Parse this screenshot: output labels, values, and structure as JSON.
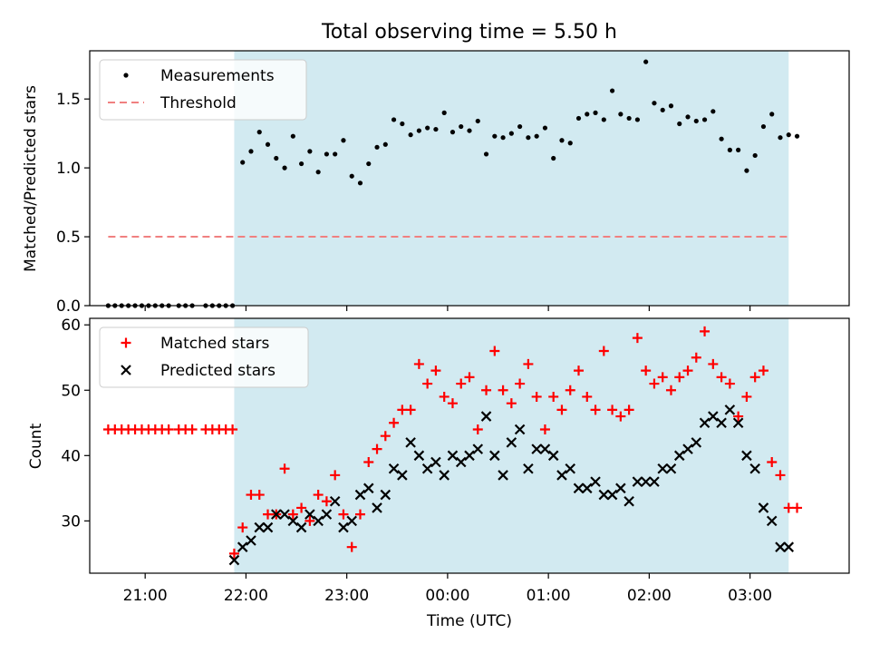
{
  "figure": {
    "title": "Total observing time = 5.50 h"
  },
  "chart_data": [
    {
      "type": "scatter",
      "ylabel": "Matched/Predicted stars",
      "xlabel": "",
      "ylim": [
        0.0,
        1.85
      ],
      "xlim": [
        "20:27",
        "03:59"
      ],
      "yticks": [
        "0.0",
        "0.5",
        "1.0",
        "1.5"
      ],
      "yticks_values": [
        0.0,
        0.5,
        1.0,
        1.5
      ],
      "shaded_span": {
        "start": "21:53",
        "end": "03:23",
        "color": "#add8e6"
      },
      "legend": {
        "placement": "top-left",
        "entries": [
          "Measurements",
          "Threshold"
        ]
      },
      "series": [
        {
          "name": "Measurements",
          "marker": "dot",
          "color": "#000000",
          "x": [
            "20:38",
            "20:42",
            "20:46",
            "20:50",
            "20:54",
            "20:58",
            "21:02",
            "21:06",
            "21:10",
            "21:14",
            "21:20",
            "21:24",
            "21:28",
            "21:36",
            "21:40",
            "21:44",
            "21:48",
            "21:52",
            "21:58",
            "22:03",
            "22:08",
            "22:13",
            "22:18",
            "22:23",
            "22:28",
            "22:33",
            "22:38",
            "22:43",
            "22:48",
            "22:53",
            "22:58",
            "23:03",
            "23:08",
            "23:13",
            "23:18",
            "23:23",
            "23:28",
            "23:33",
            "23:38",
            "23:43",
            "23:48",
            "23:53",
            "23:58",
            "00:03",
            "00:08",
            "00:13",
            "00:18",
            "00:23",
            "00:28",
            "00:33",
            "00:38",
            "00:43",
            "00:48",
            "00:53",
            "00:58",
            "01:03",
            "01:08",
            "01:13",
            "01:18",
            "01:23",
            "01:28",
            "01:33",
            "01:38",
            "01:43",
            "01:48",
            "01:53",
            "01:58",
            "02:03",
            "02:08",
            "02:13",
            "02:18",
            "02:23",
            "02:28",
            "02:33",
            "02:38",
            "02:43",
            "02:48",
            "02:53",
            "02:58",
            "03:03",
            "03:08",
            "03:13",
            "03:18",
            "03:23",
            "03:28"
          ],
          "y": [
            0,
            0,
            0,
            0,
            0,
            0,
            0,
            0,
            0,
            0,
            0,
            0,
            0,
            0,
            0,
            0,
            0,
            0,
            1.04,
            1.12,
            1.26,
            1.17,
            1.07,
            1.0,
            1.23,
            1.03,
            1.12,
            0.97,
            1.1,
            1.1,
            1.2,
            0.94,
            0.89,
            1.03,
            1.15,
            1.17,
            1.35,
            1.32,
            1.24,
            1.27,
            1.29,
            1.28,
            1.4,
            1.26,
            1.3,
            1.27,
            1.34,
            1.1,
            1.23,
            1.22,
            1.25,
            1.3,
            1.22,
            1.23,
            1.29,
            1.07,
            1.2,
            1.18,
            1.36,
            1.39,
            1.4,
            1.35,
            1.56,
            1.39,
            1.36,
            1.35,
            1.77,
            1.47,
            1.42,
            1.45,
            1.32,
            1.37,
            1.34,
            1.35,
            1.41,
            1.21,
            1.13,
            1.13,
            0.98,
            1.09,
            1.3,
            1.39,
            1.22,
            1.24,
            1.23
          ]
        },
        {
          "name": "Threshold",
          "style": "dashed",
          "color": "#f08080",
          "x": [
            "20:38",
            "03:23"
          ],
          "y": [
            0.5,
            0.5
          ]
        }
      ]
    },
    {
      "type": "scatter",
      "ylabel": "Count",
      "xlabel": "Time (UTC)",
      "ylim": [
        22,
        61
      ],
      "xlim": [
        "20:27",
        "03:59"
      ],
      "yticks": [
        "30",
        "40",
        "50",
        "60"
      ],
      "yticks_values": [
        30,
        40,
        50,
        60
      ],
      "xticks": [
        "21:00",
        "22:00",
        "23:00",
        "00:00",
        "01:00",
        "02:00",
        "03:00"
      ],
      "shaded_span": {
        "start": "21:53",
        "end": "03:23",
        "color": "#add8e6"
      },
      "legend": {
        "placement": "top-left",
        "entries": [
          "Matched stars",
          "Predicted stars"
        ]
      },
      "series": [
        {
          "name": "Matched stars",
          "marker": "plus",
          "color": "#ff0000",
          "x": [
            "20:38",
            "20:42",
            "20:46",
            "20:50",
            "20:54",
            "20:58",
            "21:02",
            "21:06",
            "21:10",
            "21:14",
            "21:20",
            "21:24",
            "21:28",
            "21:36",
            "21:40",
            "21:44",
            "21:48",
            "21:52",
            "21:53",
            "21:58",
            "22:03",
            "22:08",
            "22:13",
            "22:18",
            "22:23",
            "22:28",
            "22:33",
            "22:38",
            "22:43",
            "22:48",
            "22:53",
            "22:58",
            "23:03",
            "23:08",
            "23:13",
            "23:18",
            "23:23",
            "23:28",
            "23:33",
            "23:38",
            "23:43",
            "23:48",
            "23:53",
            "23:58",
            "00:03",
            "00:08",
            "00:13",
            "00:18",
            "00:23",
            "00:28",
            "00:33",
            "00:38",
            "00:43",
            "00:48",
            "00:53",
            "00:58",
            "01:03",
            "01:08",
            "01:13",
            "01:18",
            "01:23",
            "01:28",
            "01:33",
            "01:38",
            "01:43",
            "01:48",
            "01:53",
            "01:58",
            "02:03",
            "02:08",
            "02:13",
            "02:18",
            "02:23",
            "02:28",
            "02:33",
            "02:38",
            "02:43",
            "02:48",
            "02:53",
            "02:58",
            "03:03",
            "03:08",
            "03:13",
            "03:18",
            "03:23",
            "03:28"
          ],
          "y": [
            44,
            44,
            44,
            44,
            44,
            44,
            44,
            44,
            44,
            44,
            44,
            44,
            44,
            44,
            44,
            44,
            44,
            44,
            25,
            29,
            34,
            34,
            31,
            31,
            38,
            31,
            32,
            30,
            34,
            33,
            37,
            31,
            26,
            31,
            39,
            41,
            43,
            45,
            47,
            47,
            54,
            51,
            53,
            49,
            48,
            51,
            52,
            44,
            50,
            56,
            50,
            48,
            51,
            54,
            49,
            44,
            49,
            47,
            50,
            53,
            49,
            47,
            56,
            47,
            46,
            47,
            58,
            53,
            51,
            52,
            50,
            52,
            53,
            55,
            59,
            54,
            52,
            51,
            46,
            49,
            52,
            53,
            39,
            37,
            32,
            32
          ]
        },
        {
          "name": "Predicted stars",
          "marker": "x",
          "color": "#000000",
          "x": [
            "21:53",
            "21:58",
            "22:03",
            "22:08",
            "22:13",
            "22:18",
            "22:23",
            "22:28",
            "22:33",
            "22:38",
            "22:43",
            "22:48",
            "22:53",
            "22:58",
            "23:03",
            "23:08",
            "23:13",
            "23:18",
            "23:23",
            "23:28",
            "23:33",
            "23:38",
            "23:43",
            "23:48",
            "23:53",
            "23:58",
            "00:03",
            "00:08",
            "00:13",
            "00:18",
            "00:23",
            "00:28",
            "00:33",
            "00:38",
            "00:43",
            "00:48",
            "00:53",
            "00:58",
            "01:03",
            "01:08",
            "01:13",
            "01:18",
            "01:23",
            "01:28",
            "01:33",
            "01:38",
            "01:43",
            "01:48",
            "01:53",
            "01:58",
            "02:03",
            "02:08",
            "02:13",
            "02:18",
            "02:23",
            "02:28",
            "02:33",
            "02:38",
            "02:43",
            "02:48",
            "02:53",
            "02:58",
            "03:03",
            "03:08",
            "03:13",
            "03:18",
            "03:23"
          ],
          "y": [
            24,
            26,
            27,
            29,
            29,
            31,
            31,
            30,
            29,
            31,
            30,
            31,
            33,
            29,
            30,
            34,
            35,
            32,
            34,
            38,
            37,
            42,
            40,
            38,
            39,
            37,
            40,
            39,
            40,
            41,
            46,
            40,
            37,
            42,
            44,
            38,
            41,
            41,
            40,
            37,
            38,
            35,
            35,
            36,
            34,
            34,
            35,
            33,
            36,
            36,
            36,
            38,
            38,
            40,
            41,
            42,
            45,
            46,
            45,
            47,
            45,
            40,
            38,
            32,
            30,
            26,
            26
          ]
        }
      ]
    }
  ]
}
